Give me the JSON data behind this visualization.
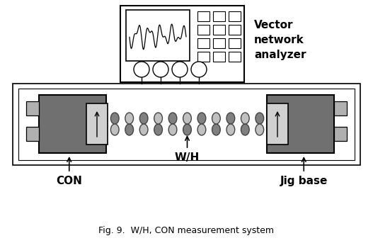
{
  "title": "Fig. 9.  W/H, CON measurement system",
  "vna_label": "Vector\nnetwork\nanalyzer",
  "con_label": "CON",
  "wh_label": "W/H",
  "jig_label": "Jig base",
  "bg_color": "#ffffff",
  "dark_gray": "#707070",
  "medium_gray": "#999999",
  "light_gray": "#b0b0b0",
  "lighter_gray": "#d0d0d0",
  "cable_dark": "#808080",
  "cable_light": "#c0c0c0"
}
